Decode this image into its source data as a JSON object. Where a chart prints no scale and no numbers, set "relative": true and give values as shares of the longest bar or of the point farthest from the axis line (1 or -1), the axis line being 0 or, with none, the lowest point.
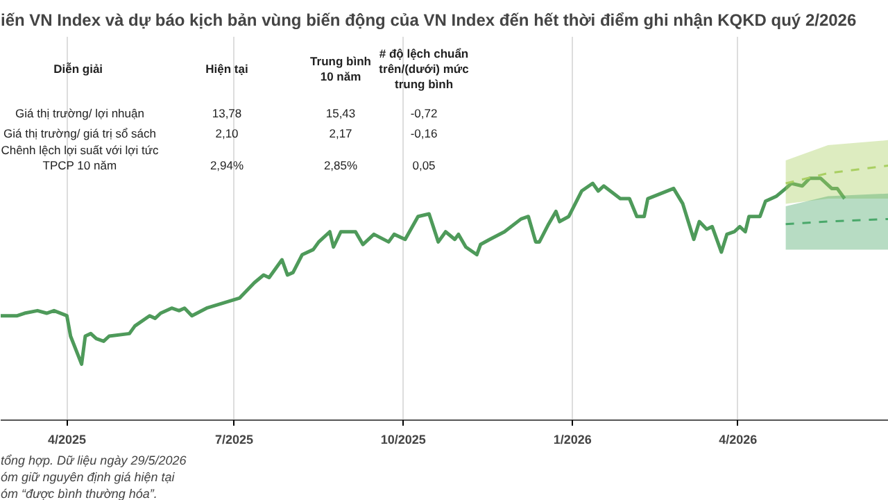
{
  "chart_data": {
    "type": "line",
    "relative": true,
    "title": "iến VN Index và dự báo kịch bản vùng biến động của VN Index đến hết thời điểm ghi nhận KQKD quý 2/2026",
    "xlim": [
      "2025-02-24",
      "2026-06-22"
    ],
    "xticks": [
      {
        "value": "2025-04-01",
        "label": "4/2025"
      },
      {
        "value": "2025-07-01",
        "label": "7/2025"
      },
      {
        "value": "2025-10-01",
        "label": "10/2025"
      },
      {
        "value": "2026-01-01",
        "label": "1/2026"
      },
      {
        "value": "2026-04-01",
        "label": "4/2026"
      }
    ],
    "grid": "x",
    "series": [
      {
        "color": "#4e9a5a",
        "line_style": "solid",
        "x": [
          "2025-02-24",
          "2025-03-05",
          "2025-03-09",
          "2025-03-16",
          "2025-03-21",
          "2025-03-25",
          "2025-04-01",
          "2025-04-03",
          "2025-04-09",
          "2025-04-11",
          "2025-04-14",
          "2025-04-17",
          "2025-04-21",
          "2025-04-24",
          "2025-05-05",
          "2025-05-08",
          "2025-05-16",
          "2025-05-19",
          "2025-05-22",
          "2025-05-28",
          "2025-06-01",
          "2025-06-04",
          "2025-06-08",
          "2025-06-16",
          "2025-06-25",
          "2025-07-04",
          "2025-07-12",
          "2025-07-17",
          "2025-07-20",
          "2025-07-27",
          "2025-07-30",
          "2025-08-02",
          "2025-08-07",
          "2025-08-13",
          "2025-08-16",
          "2025-08-22",
          "2025-08-24",
          "2025-08-28",
          "2025-09-05",
          "2025-09-09",
          "2025-09-15",
          "2025-09-23",
          "2025-09-26",
          "2025-10-02",
          "2025-10-09",
          "2025-10-15",
          "2025-10-20",
          "2025-10-24",
          "2025-10-29",
          "2025-10-31",
          "2025-11-04",
          "2025-11-10",
          "2025-11-12",
          "2025-11-17",
          "2025-11-25",
          "2025-12-04",
          "2025-12-08",
          "2025-12-12",
          "2025-12-14",
          "2025-12-19",
          "2025-12-23",
          "2025-12-25",
          "2025-12-30",
          "2026-01-06",
          "2026-01-12",
          "2026-01-15",
          "2026-01-18",
          "2026-01-27",
          "2026-02-01",
          "2026-02-05",
          "2026-02-09",
          "2026-02-11",
          "2026-02-25",
          "2026-03-02",
          "2026-03-08",
          "2026-03-11",
          "2026-03-15",
          "2026-03-18",
          "2026-03-23",
          "2026-03-26",
          "2026-03-30",
          "2026-04-02",
          "2026-04-05",
          "2026-04-07",
          "2026-04-13",
          "2026-04-16",
          "2026-04-22",
          "2026-04-27",
          "2026-04-30",
          "2026-05-06",
          "2026-05-10",
          "2026-05-16",
          "2026-05-22",
          "2026-05-25",
          "2026-05-29"
        ],
        "values": [
          0.41,
          0.41,
          0.42,
          0.43,
          0.42,
          0.43,
          0.41,
          0.33,
          0.22,
          0.33,
          0.34,
          0.32,
          0.31,
          0.33,
          0.34,
          0.37,
          0.41,
          0.4,
          0.42,
          0.44,
          0.43,
          0.44,
          0.41,
          0.44,
          0.46,
          0.48,
          0.54,
          0.57,
          0.56,
          0.63,
          0.57,
          0.58,
          0.65,
          0.67,
          0.7,
          0.74,
          0.68,
          0.74,
          0.74,
          0.69,
          0.73,
          0.7,
          0.73,
          0.71,
          0.8,
          0.81,
          0.7,
          0.74,
          0.71,
          0.73,
          0.68,
          0.65,
          0.69,
          0.71,
          0.74,
          0.79,
          0.8,
          0.7,
          0.7,
          0.77,
          0.82,
          0.78,
          0.8,
          0.9,
          0.93,
          0.9,
          0.92,
          0.87,
          0.87,
          0.8,
          0.8,
          0.87,
          0.91,
          0.85,
          0.71,
          0.78,
          0.75,
          0.76,
          0.66,
          0.73,
          0.74,
          0.76,
          0.74,
          0.8,
          0.8,
          0.86,
          0.88,
          0.91,
          0.93,
          0.92,
          0.95,
          0.95,
          0.91,
          0.91,
          0.87
        ]
      },
      {
        "color": "#a9cf62",
        "line_style": "dashed",
        "x": [
          "2026-04-27",
          "2026-05-20",
          "2026-06-22"
        ],
        "values": [
          0.93,
          0.97,
          1.0
        ],
        "lower": [
          0.85,
          0.87,
          0.87
        ],
        "upper": [
          1.02,
          1.08,
          1.1
        ]
      },
      {
        "color": "#4aa86a",
        "line_style": "dashed",
        "x": [
          "2026-04-27",
          "2026-05-20",
          "2026-06-22"
        ],
        "values": [
          0.77,
          0.78,
          0.79
        ],
        "lower": [
          0.67,
          0.67,
          0.67
        ],
        "upper": [
          0.84,
          0.88,
          0.89
        ]
      }
    ],
    "annotations": [
      "Diễn  giải",
      "Hiện tại",
      "Trung bình\n10 năm",
      "# độ lệch chuẩn\ntrên/(dưới) mức\ntrung bình",
      "Giá thị trường/ lợi nhuận",
      "13,78",
      "15,43",
      "-0,72",
      "Giá thị trường/ giá trị sổ sách",
      "2,10",
      "2,17",
      "-0,16",
      "Chênh lệch lợi suất với lợi tức\nTPCP 10 năm",
      "2,94%",
      "2,85%",
      "0,05",
      "tổng hợp. Dữ liệu ngày 29/5/2026",
      "óm giữ nguyên định giá hiện tại",
      "óm “được bình thường hóa”."
    ]
  }
}
